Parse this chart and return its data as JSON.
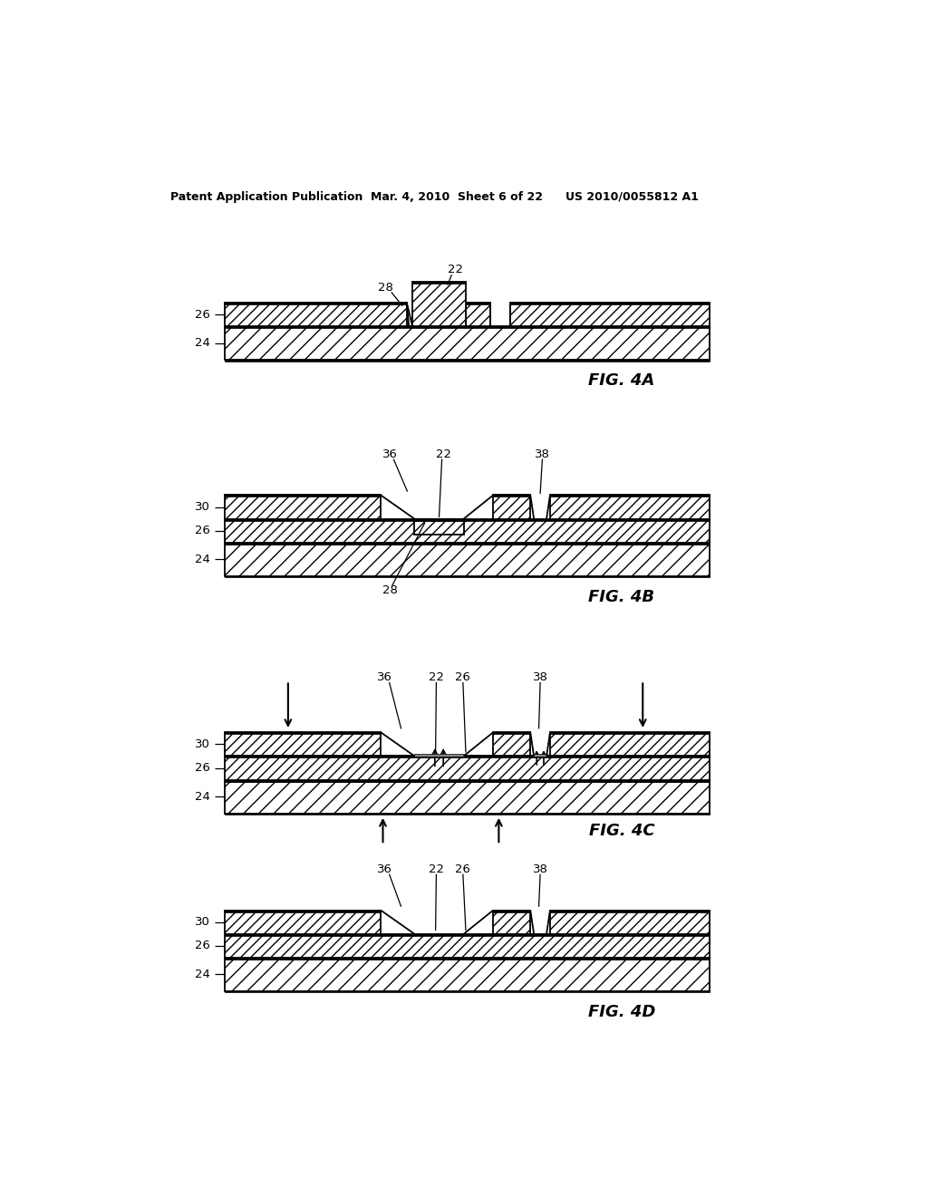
{
  "bg_color": "#ffffff",
  "header_left": "Patent Application Publication",
  "header_mid": "Mar. 4, 2010  Sheet 6 of 22",
  "header_right": "US 2010/0055812 A1",
  "hatch_dense": "////",
  "hatch_sparse": "\\\\\\\\"
}
